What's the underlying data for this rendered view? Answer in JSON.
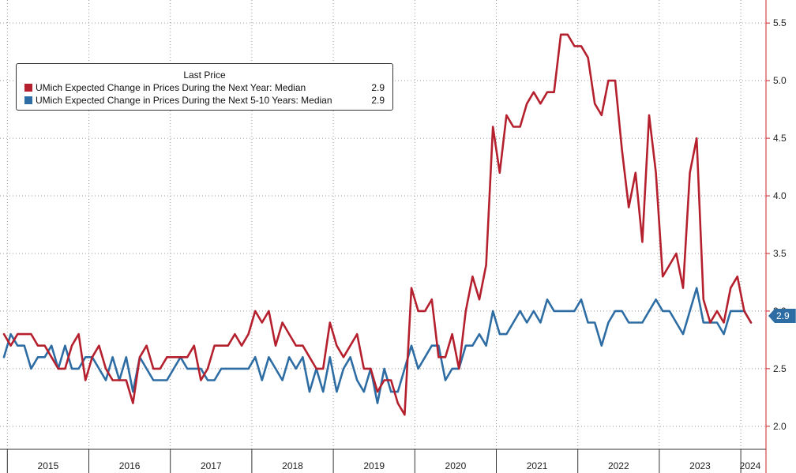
{
  "legend": {
    "title": "Last Price",
    "items": [
      {
        "label": "UMich Expected Change in Prices During the Next Year: Median",
        "value": "2.9",
        "color": "#b5202e"
      },
      {
        "label": "UMich Expected Change in Prices During the Next 5-10 Years: Median",
        "value": "2.9",
        "color": "#2e6da4"
      }
    ]
  },
  "last_value_badge": {
    "text": "2.9",
    "color": "#2e6da4"
  },
  "chart_data": {
    "type": "line",
    "title": "",
    "xlabel": "",
    "ylabel": "",
    "axis_side": "right",
    "grid": true,
    "x_start": "2014-12",
    "x_frequency": "monthly",
    "ylim": [
      1.8,
      5.7
    ],
    "y_ticks": [
      2.0,
      2.5,
      3.0,
      3.5,
      4.0,
      4.5,
      5.0,
      5.5
    ],
    "y_tick_labels": [
      "2.0",
      "2.5",
      "3.0",
      "3.5",
      "4.0",
      "4.5",
      "5.0",
      "5.5"
    ],
    "x_tick_labels": [
      "2015",
      "2016",
      "2017",
      "2018",
      "2019",
      "2020",
      "2021",
      "2022",
      "2023",
      "2024"
    ],
    "series": [
      {
        "name": "UMich Expected Change in Prices During the Next Year: Median",
        "color": "#b5202e",
        "values": [
          2.8,
          2.7,
          2.8,
          2.8,
          2.8,
          2.7,
          2.7,
          2.6,
          2.5,
          2.5,
          2.7,
          2.8,
          2.4,
          2.6,
          2.7,
          2.5,
          2.4,
          2.4,
          2.4,
          2.2,
          2.6,
          2.7,
          2.5,
          2.5,
          2.6,
          2.6,
          2.6,
          2.6,
          2.7,
          2.4,
          2.5,
          2.7,
          2.7,
          2.7,
          2.8,
          2.7,
          2.8,
          3.0,
          2.9,
          3.0,
          2.7,
          2.9,
          2.8,
          2.7,
          2.7,
          2.6,
          2.5,
          2.5,
          2.9,
          2.7,
          2.6,
          2.7,
          2.8,
          2.5,
          2.5,
          2.3,
          2.4,
          2.4,
          2.2,
          2.1,
          3.2,
          3.0,
          3.0,
          3.1,
          2.6,
          2.6,
          2.8,
          2.5,
          3.0,
          3.3,
          3.1,
          3.4,
          4.6,
          4.2,
          4.7,
          4.6,
          4.6,
          4.8,
          4.9,
          4.8,
          4.9,
          4.9,
          5.4,
          5.4,
          5.3,
          5.3,
          5.2,
          4.8,
          4.7,
          5.0,
          5.0,
          4.4,
          3.9,
          4.2,
          3.6,
          4.7,
          4.2,
          3.3,
          3.4,
          3.5,
          3.2,
          4.2,
          4.5,
          3.1,
          2.9,
          3.0,
          2.9,
          3.2,
          3.3,
          3.0,
          2.9
        ]
      },
      {
        "name": "UMich Expected Change in Prices During the Next 5-10 Years: Median",
        "color": "#2e6da4",
        "values": [
          2.6,
          2.8,
          2.7,
          2.7,
          2.5,
          2.6,
          2.6,
          2.7,
          2.5,
          2.7,
          2.5,
          2.5,
          2.6,
          2.6,
          2.5,
          2.4,
          2.6,
          2.4,
          2.6,
          2.3,
          2.6,
          2.5,
          2.4,
          2.4,
          2.4,
          2.5,
          2.6,
          2.5,
          2.5,
          2.5,
          2.4,
          2.4,
          2.5,
          2.5,
          2.5,
          2.5,
          2.5,
          2.6,
          2.4,
          2.6,
          2.5,
          2.4,
          2.6,
          2.5,
          2.6,
          2.3,
          2.5,
          2.3,
          2.6,
          2.3,
          2.5,
          2.6,
          2.4,
          2.3,
          2.5,
          2.2,
          2.5,
          2.3,
          2.3,
          2.5,
          2.7,
          2.5,
          2.6,
          2.7,
          2.7,
          2.4,
          2.5,
          2.5,
          2.7,
          2.7,
          2.8,
          2.7,
          3.0,
          2.8,
          2.8,
          2.9,
          3.0,
          2.9,
          3.0,
          2.9,
          3.1,
          3.0,
          3.0,
          3.0,
          3.0,
          3.1,
          2.9,
          2.9,
          2.7,
          2.9,
          3.0,
          3.0,
          2.9,
          2.9,
          2.9,
          3.0,
          3.1,
          3.0,
          3.0,
          2.9,
          2.8,
          3.0,
          3.2,
          2.9,
          2.9,
          2.9,
          2.8,
          3.0,
          3.0,
          3.0,
          2.9
        ]
      }
    ]
  }
}
